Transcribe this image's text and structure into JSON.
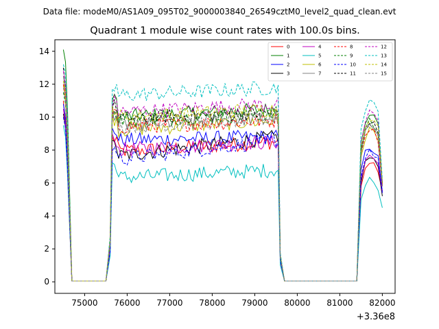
{
  "header": {
    "data_file": "Data file: modeM0/AS1A09_095T02_9000003840_26549cztM0_level2_quad_clean.evt"
  },
  "chart_data": {
    "type": "line",
    "title": "Quadrant 1 module wise count rates with 100.0s bins.",
    "xlabel": "",
    "ylabel": "",
    "x_offset_label": "+3.36e8",
    "xlim": [
      74300,
      82300
    ],
    "ylim": [
      -0.7,
      14.7
    ],
    "x_ticks": [
      75000,
      76000,
      77000,
      78000,
      79000,
      80000,
      81000,
      82000
    ],
    "x_tick_labels": [
      "75000",
      "76000",
      "77000",
      "78000",
      "79000",
      "80000",
      "81000",
      "82000"
    ],
    "y_ticks": [
      0,
      2,
      4,
      6,
      8,
      10,
      12,
      14
    ],
    "y_tick_labels": [
      "0",
      "2",
      "4",
      "6",
      "8",
      "10",
      "12",
      "14"
    ],
    "grid": false,
    "legend_position": "top-right",
    "segments": [
      {
        "x_start": 74500,
        "x_end": 74600
      },
      {
        "x_start": 75600,
        "x_end": 79600
      },
      {
        "x_start": 81400,
        "x_end": 82000
      }
    ],
    "gaps": [
      {
        "x_start": 74700,
        "x_end": 75500
      },
      {
        "x_start": 79700,
        "x_end": 81300
      }
    ],
    "series": [
      {
        "name": "0",
        "color": "#ff0000",
        "dash": false,
        "start": 11.0,
        "second": 7.5,
        "level": 7.9,
        "late": 8.5,
        "tail": [
          5.8,
          7.0,
          7.2,
          7.0,
          6.8,
          5.5
        ]
      },
      {
        "name": "1",
        "color": "#008000",
        "dash": false,
        "start": 14.1,
        "second": 12.0,
        "level": 10.0,
        "late": 10.5,
        "tail": [
          8.5,
          9.8,
          10.3,
          10.0,
          9.5,
          6.0
        ]
      },
      {
        "name": "2",
        "color": "#0000ff",
        "dash": false,
        "start": 10.8,
        "second": 8.5,
        "level": 8.6,
        "late": 8.8,
        "tail": [
          6.8,
          7.8,
          8.2,
          8.0,
          7.8,
          5.5
        ]
      },
      {
        "name": "3",
        "color": "#000000",
        "dash": false,
        "start": 10.2,
        "second": 8.0,
        "level": 7.6,
        "late": 8.8,
        "tail": [
          6.0,
          7.2,
          7.6,
          7.4,
          7.0,
          5.2
        ]
      },
      {
        "name": "4",
        "color": "#bf00bf",
        "dash": false,
        "start": 10.5,
        "second": 8.0,
        "level": 8.0,
        "late": 8.5,
        "tail": [
          6.2,
          7.3,
          7.7,
          7.5,
          7.2,
          5.4
        ]
      },
      {
        "name": "5",
        "color": "#00bfbf",
        "dash": false,
        "start": 9.5,
        "second": 7.5,
        "level": 6.3,
        "late": 6.8,
        "tail": [
          5.0,
          5.8,
          6.2,
          6.0,
          5.8,
          4.5
        ]
      },
      {
        "name": "6",
        "color": "#bfbf00",
        "dash": false,
        "start": 12.0,
        "second": 9.5,
        "level": 9.2,
        "late": 9.8,
        "tail": [
          7.6,
          8.8,
          9.3,
          9.0,
          8.6,
          5.8
        ]
      },
      {
        "name": "7",
        "color": "#808080",
        "dash": false,
        "start": 12.5,
        "second": 9.8,
        "level": 9.5,
        "late": 10.0,
        "tail": [
          7.8,
          9.0,
          9.5,
          9.2,
          8.8,
          5.8
        ]
      },
      {
        "name": "8",
        "color": "#ff0000",
        "dash": true,
        "start": 12.0,
        "second": 9.5,
        "level": 9.4,
        "late": 9.8,
        "tail": [
          7.8,
          9.0,
          9.4,
          9.1,
          8.7,
          5.9
        ]
      },
      {
        "name": "9",
        "color": "#008000",
        "dash": true,
        "start": 11.5,
        "second": 9.5,
        "level": 9.8,
        "late": 10.2,
        "tail": [
          8.0,
          9.4,
          9.8,
          9.5,
          9.0,
          6.0
        ]
      },
      {
        "name": "10",
        "color": "#0000ff",
        "dash": true,
        "start": 10.0,
        "second": 8.0,
        "level": 7.4,
        "late": 8.6,
        "tail": [
          6.4,
          7.6,
          8.0,
          7.8,
          7.5,
          5.4
        ]
      },
      {
        "name": "11",
        "color": "#000000",
        "dash": true,
        "start": 13.0,
        "second": 10.0,
        "level": 9.9,
        "late": 10.3,
        "tail": [
          8.0,
          9.4,
          9.8,
          9.5,
          9.1,
          6.0
        ]
      },
      {
        "name": "12",
        "color": "#bf00bf",
        "dash": true,
        "start": 12.8,
        "second": 10.5,
        "level": 10.3,
        "late": 10.8,
        "tail": [
          8.5,
          9.8,
          10.2,
          10.0,
          9.6,
          6.0
        ]
      },
      {
        "name": "13",
        "color": "#00bfbf",
        "dash": true,
        "start": 13.2,
        "second": 11.5,
        "level": 11.3,
        "late": 11.8,
        "tail": [
          9.3,
          10.6,
          11.0,
          10.7,
          10.2,
          6.2
        ]
      },
      {
        "name": "14",
        "color": "#bfbf00",
        "dash": true,
        "start": 12.2,
        "second": 10.2,
        "level": 10.0,
        "late": 10.5,
        "tail": [
          8.2,
          9.6,
          10.0,
          9.7,
          9.3,
          6.0
        ]
      },
      {
        "name": "15",
        "color": "#808080",
        "dash": true,
        "start": 11.8,
        "second": 9.6,
        "level": 9.4,
        "late": 9.9,
        "tail": [
          7.8,
          9.1,
          9.6,
          9.3,
          8.9,
          5.8
        ]
      }
    ]
  }
}
